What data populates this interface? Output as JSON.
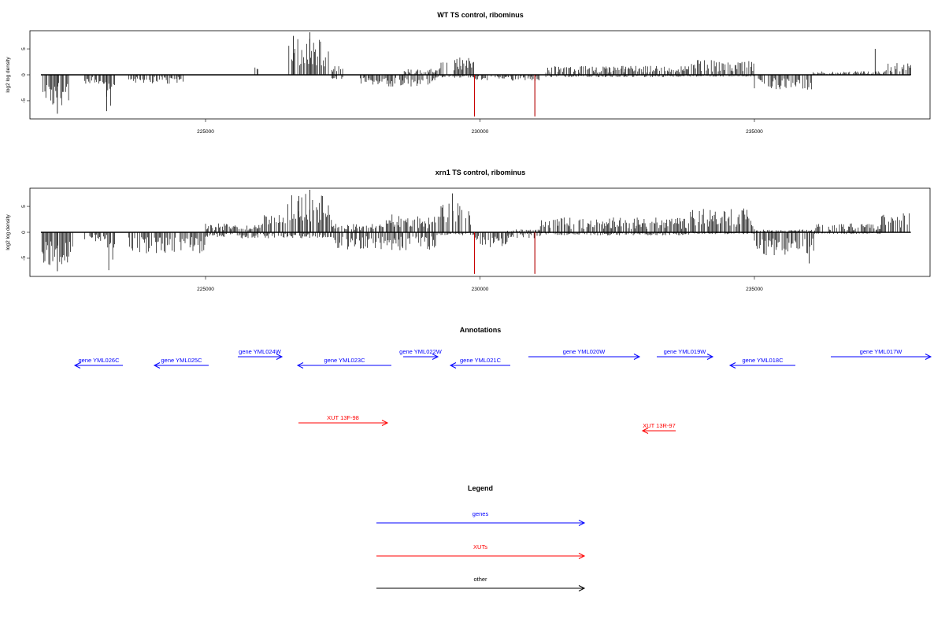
{
  "chart_data": [
    {
      "type": "bar",
      "title": "WT TS control, ribominus",
      "ylabel": "log2 log density",
      "xlim": [
        221800,
        238200
      ],
      "ylim": [
        -8.5,
        8.5
      ],
      "x_ticks": [
        225000,
        230000,
        235000
      ],
      "x_tick_labels": [
        "225000",
        "230000",
        "235000"
      ],
      "y_ticks": [
        -5,
        0,
        5
      ],
      "y_tick_labels": [
        "-5",
        "0",
        "5"
      ],
      "signal_range": [
        222000,
        237850
      ],
      "segments": [
        {
          "from": 222000,
          "to": 222580,
          "pos": 0,
          "neg": 5.5
        },
        {
          "from": 222800,
          "to": 223200,
          "pos": 0,
          "neg": 1.5
        },
        {
          "from": 223200,
          "to": 223350,
          "pos": 0,
          "neg": 6.5
        },
        {
          "from": 223600,
          "to": 224600,
          "pos": 0,
          "neg": 1.5
        },
        {
          "from": 225900,
          "to": 225960,
          "pos": 2,
          "neg": 0
        },
        {
          "from": 226500,
          "to": 227250,
          "pos": 6.5,
          "neg": 0
        },
        {
          "from": 227300,
          "to": 227500,
          "pos": 1.5,
          "neg": 1
        },
        {
          "from": 227800,
          "to": 228600,
          "pos": 0,
          "neg": 2
        },
        {
          "from": 228600,
          "to": 229200,
          "pos": 1,
          "neg": 2
        },
        {
          "from": 229200,
          "to": 229900,
          "pos": 3,
          "neg": 0.5
        },
        {
          "from": 229900,
          "to": 230500,
          "pos": 0,
          "neg": 1
        },
        {
          "from": 230500,
          "to": 231100,
          "pos": 0,
          "neg": 1
        },
        {
          "from": 231200,
          "to": 233800,
          "pos": 1.5,
          "neg": 0.4
        },
        {
          "from": 233800,
          "to": 235000,
          "pos": 2.5,
          "neg": 0.3
        },
        {
          "from": 235000,
          "to": 236050,
          "pos": 0,
          "neg": 2.5
        },
        {
          "from": 236050,
          "to": 237400,
          "pos": 0.6,
          "neg": 0
        },
        {
          "from": 237400,
          "to": 237850,
          "pos": 2,
          "neg": 0
        }
      ],
      "spikes": [
        {
          "x": 223200,
          "y": -7
        },
        {
          "x": 222300,
          "y": -7.5
        },
        {
          "x": 226900,
          "y": 8.2
        },
        {
          "x": 226600,
          "y": 7.5
        },
        {
          "x": 229900,
          "y": -8
        },
        {
          "x": 231000,
          "y": -8
        },
        {
          "x": 237200,
          "y": 5
        }
      ],
      "highlight_lines": [
        {
          "x": 229900,
          "y": -8,
          "color": "#cc0000"
        },
        {
          "x": 231000,
          "y": -8,
          "color": "#cc0000"
        }
      ]
    },
    {
      "type": "bar",
      "title": "xrn1 TS control, ribominus",
      "ylabel": "log2 log density",
      "xlim": [
        221800,
        238200
      ],
      "ylim": [
        -8.5,
        8.5
      ],
      "x_ticks": [
        225000,
        230000,
        235000
      ],
      "x_tick_labels": [
        "225000",
        "230000",
        "235000"
      ],
      "y_ticks": [
        -5,
        0,
        5
      ],
      "y_tick_labels": [
        "-5",
        "0",
        "5"
      ],
      "signal_range": [
        222000,
        237850
      ],
      "segments": [
        {
          "from": 222000,
          "to": 222580,
          "pos": 0,
          "neg": 6
        },
        {
          "from": 222800,
          "to": 223200,
          "pos": 0,
          "neg": 1.5
        },
        {
          "from": 223200,
          "to": 223350,
          "pos": 0,
          "neg": 6.5
        },
        {
          "from": 223600,
          "to": 225000,
          "pos": 0,
          "neg": 3.5
        },
        {
          "from": 225000,
          "to": 226000,
          "pos": 1.5,
          "neg": 1
        },
        {
          "from": 226000,
          "to": 226500,
          "pos": 3,
          "neg": 1
        },
        {
          "from": 226500,
          "to": 227300,
          "pos": 6.5,
          "neg": 1
        },
        {
          "from": 227300,
          "to": 228200,
          "pos": 1.5,
          "neg": 3
        },
        {
          "from": 228200,
          "to": 229200,
          "pos": 3,
          "neg": 3
        },
        {
          "from": 229200,
          "to": 229900,
          "pos": 5,
          "neg": 0.5
        },
        {
          "from": 229900,
          "to": 230500,
          "pos": 0,
          "neg": 2.5
        },
        {
          "from": 230500,
          "to": 231100,
          "pos": 0.5,
          "neg": 1
        },
        {
          "from": 231100,
          "to": 233800,
          "pos": 2.5,
          "neg": 0.5
        },
        {
          "from": 233800,
          "to": 235000,
          "pos": 4,
          "neg": 0.3
        },
        {
          "from": 235000,
          "to": 236100,
          "pos": 0.5,
          "neg": 4
        },
        {
          "from": 236100,
          "to": 237300,
          "pos": 1.5,
          "neg": 0.3
        },
        {
          "from": 237300,
          "to": 237850,
          "pos": 3.5,
          "neg": 0
        }
      ],
      "spikes": [
        {
          "x": 222300,
          "y": -7.5
        },
        {
          "x": 226900,
          "y": 8.2
        },
        {
          "x": 226700,
          "y": 7
        },
        {
          "x": 229500,
          "y": 7.5
        },
        {
          "x": 229900,
          "y": -8
        },
        {
          "x": 231000,
          "y": -8
        },
        {
          "x": 236000,
          "y": -6
        }
      ],
      "highlight_lines": [
        {
          "x": 229900,
          "y": -8,
          "color": "#cc0000"
        },
        {
          "x": 231000,
          "y": -8,
          "color": "#cc0000"
        }
      ]
    }
  ],
  "annotations": {
    "title": "Annotations",
    "genes": [
      {
        "label": "gene YML026C",
        "strand": "-"
      },
      {
        "label": "gene YML025C",
        "strand": "-"
      },
      {
        "label": "gene YML024W",
        "strand": "+"
      },
      {
        "label": "gene YML023C",
        "strand": "-"
      },
      {
        "label": "gene YML022W",
        "strand": "+"
      },
      {
        "label": "gene YML021C",
        "strand": "-"
      },
      {
        "label": "gene YML020W",
        "strand": "+"
      },
      {
        "label": "gene YML019W",
        "strand": "+"
      },
      {
        "label": "gene YML018C",
        "strand": "-"
      },
      {
        "label": "gene YML017W",
        "strand": "+"
      }
    ],
    "xuts": [
      {
        "label": "XUT 13F-98",
        "strand": "+"
      },
      {
        "label": "XUT 13R-97",
        "strand": "-"
      }
    ]
  },
  "legend": {
    "title": "Legend",
    "items": [
      {
        "label": "genes",
        "color": "#0000ff"
      },
      {
        "label": "XUTs",
        "color": "#ff0000"
      },
      {
        "label": "other",
        "color": "#000000"
      }
    ]
  },
  "colors": {
    "gene": "#0000ff",
    "xut": "#ff0000",
    "other": "#000000",
    "highlight": "#cc0000"
  }
}
